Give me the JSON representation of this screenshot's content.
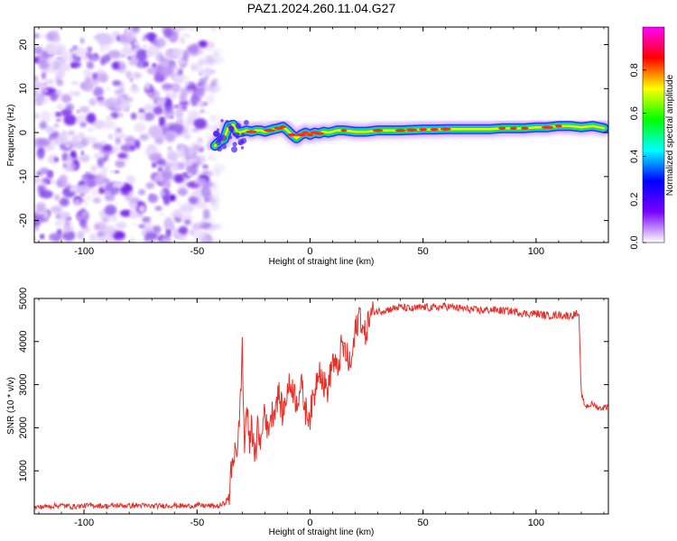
{
  "title": "PAZ1.2024.260.11.04.G27",
  "chart_data": [
    {
      "type": "heatmap",
      "title": "PAZ1.2024.260.11.04.G27",
      "xlabel": "Height of straight line (km)",
      "ylabel": "Frequency (Hz)",
      "xlim": [
        -122,
        132
      ],
      "ylim": [
        -25,
        24
      ],
      "xticks": [
        -100,
        -50,
        0,
        50,
        100
      ],
      "yticks": [
        -20,
        -10,
        0,
        10,
        20
      ],
      "noise_region": {
        "x": [
          -122,
          -42
        ],
        "y": [
          -25,
          24
        ]
      },
      "ridge": {
        "x": [
          -42,
          -40,
          -38,
          -36,
          -34,
          -32,
          -30,
          -28,
          -26,
          -24,
          -22,
          -20,
          -18,
          -16,
          -14,
          -12,
          -10,
          -8,
          -6,
          -4,
          -2,
          0,
          2,
          4,
          6,
          8,
          10,
          12,
          15,
          20,
          25,
          30,
          35,
          40,
          45,
          50,
          55,
          60,
          65,
          70,
          75,
          80,
          85,
          90,
          95,
          100,
          105,
          110,
          115,
          120,
          125,
          130
        ],
        "y": [
          -3,
          -2,
          -1.5,
          1.5,
          1.8,
          0,
          0.2,
          0.5,
          0.2,
          0.5,
          0.5,
          0.2,
          0.5,
          0.8,
          1,
          1.3,
          0.5,
          -0.5,
          -1.3,
          -0.5,
          0,
          -0.5,
          0,
          -0.2,
          0.2,
          0,
          0.2,
          0.5,
          0.5,
          0.2,
          0.2,
          0.5,
          0.5,
          0.5,
          0.6,
          0.7,
          0.7,
          0.8,
          0.8,
          0.8,
          0.8,
          0.8,
          1,
          1,
          1,
          1.2,
          1.2,
          1.5,
          1.5,
          1.2,
          1.5,
          1
        ]
      },
      "colorbar": {
        "label": "Normalized spectral amplitude",
        "range": [
          0,
          1
        ],
        "ticks": [
          0.0,
          0.2,
          0.4,
          0.6,
          0.8
        ],
        "colormap": [
          "#ffffff",
          "#7a00ff",
          "#0000ff",
          "#00ffff",
          "#00ff00",
          "#ffff00",
          "#ff0000",
          "#ff00ff"
        ]
      }
    },
    {
      "type": "line",
      "title": "",
      "xlabel": "Height of straight line (km)",
      "ylabel": "SNR (10 * v/v)",
      "xlim": [
        -122,
        132
      ],
      "ylim": [
        0,
        5000
      ],
      "xticks": [
        -100,
        -50,
        0,
        50,
        100
      ],
      "yticks": [
        1000,
        2000,
        3000,
        4000,
        5000
      ],
      "color": "#e8302a",
      "series": [
        {
          "x": [
            -122,
            -115,
            -110,
            -105,
            -100,
            -95,
            -90,
            -85,
            -80,
            -75,
            -70,
            -65,
            -60,
            -55,
            -50,
            -45,
            -40,
            -38,
            -36,
            -35,
            -34,
            -33,
            -32,
            -31,
            -30,
            -29,
            -28,
            -27,
            -26,
            -25,
            -24,
            -23,
            -22,
            -21,
            -20,
            -19,
            -18,
            -16,
            -14,
            -12,
            -10,
            -8,
            -6,
            -4,
            -2,
            0,
            2,
            4,
            6,
            8,
            10,
            12,
            14,
            16,
            18,
            20,
            22,
            24,
            26,
            28,
            30,
            35,
            40,
            45,
            50,
            55,
            60,
            65,
            70,
            75,
            80,
            85,
            90,
            95,
            100,
            105,
            110,
            115,
            118,
            119,
            120,
            121,
            122,
            125,
            128,
            132
          ],
          "y": [
            150,
            180,
            200,
            170,
            190,
            200,
            180,
            200,
            190,
            200,
            180,
            190,
            200,
            180,
            200,
            190,
            180,
            250,
            350,
            900,
            1200,
            1700,
            1400,
            2500,
            3800,
            1500,
            2600,
            1600,
            2000,
            1800,
            1200,
            2200,
            1500,
            2000,
            2600,
            1800,
            2200,
            2400,
            2800,
            2300,
            2900,
            3000,
            2600,
            3000,
            2400,
            2300,
            2800,
            3500,
            3000,
            2900,
            3600,
            3300,
            3900,
            3700,
            3400,
            4200,
            4700,
            4100,
            4500,
            4700,
            4700,
            4750,
            4800,
            4750,
            4800,
            4780,
            4820,
            4780,
            4750,
            4720,
            4740,
            4720,
            4700,
            4650,
            4650,
            4600,
            4620,
            4600,
            4650,
            4550,
            2800,
            2600,
            2500,
            2550,
            2450,
            2500
          ]
        }
      ]
    }
  ]
}
